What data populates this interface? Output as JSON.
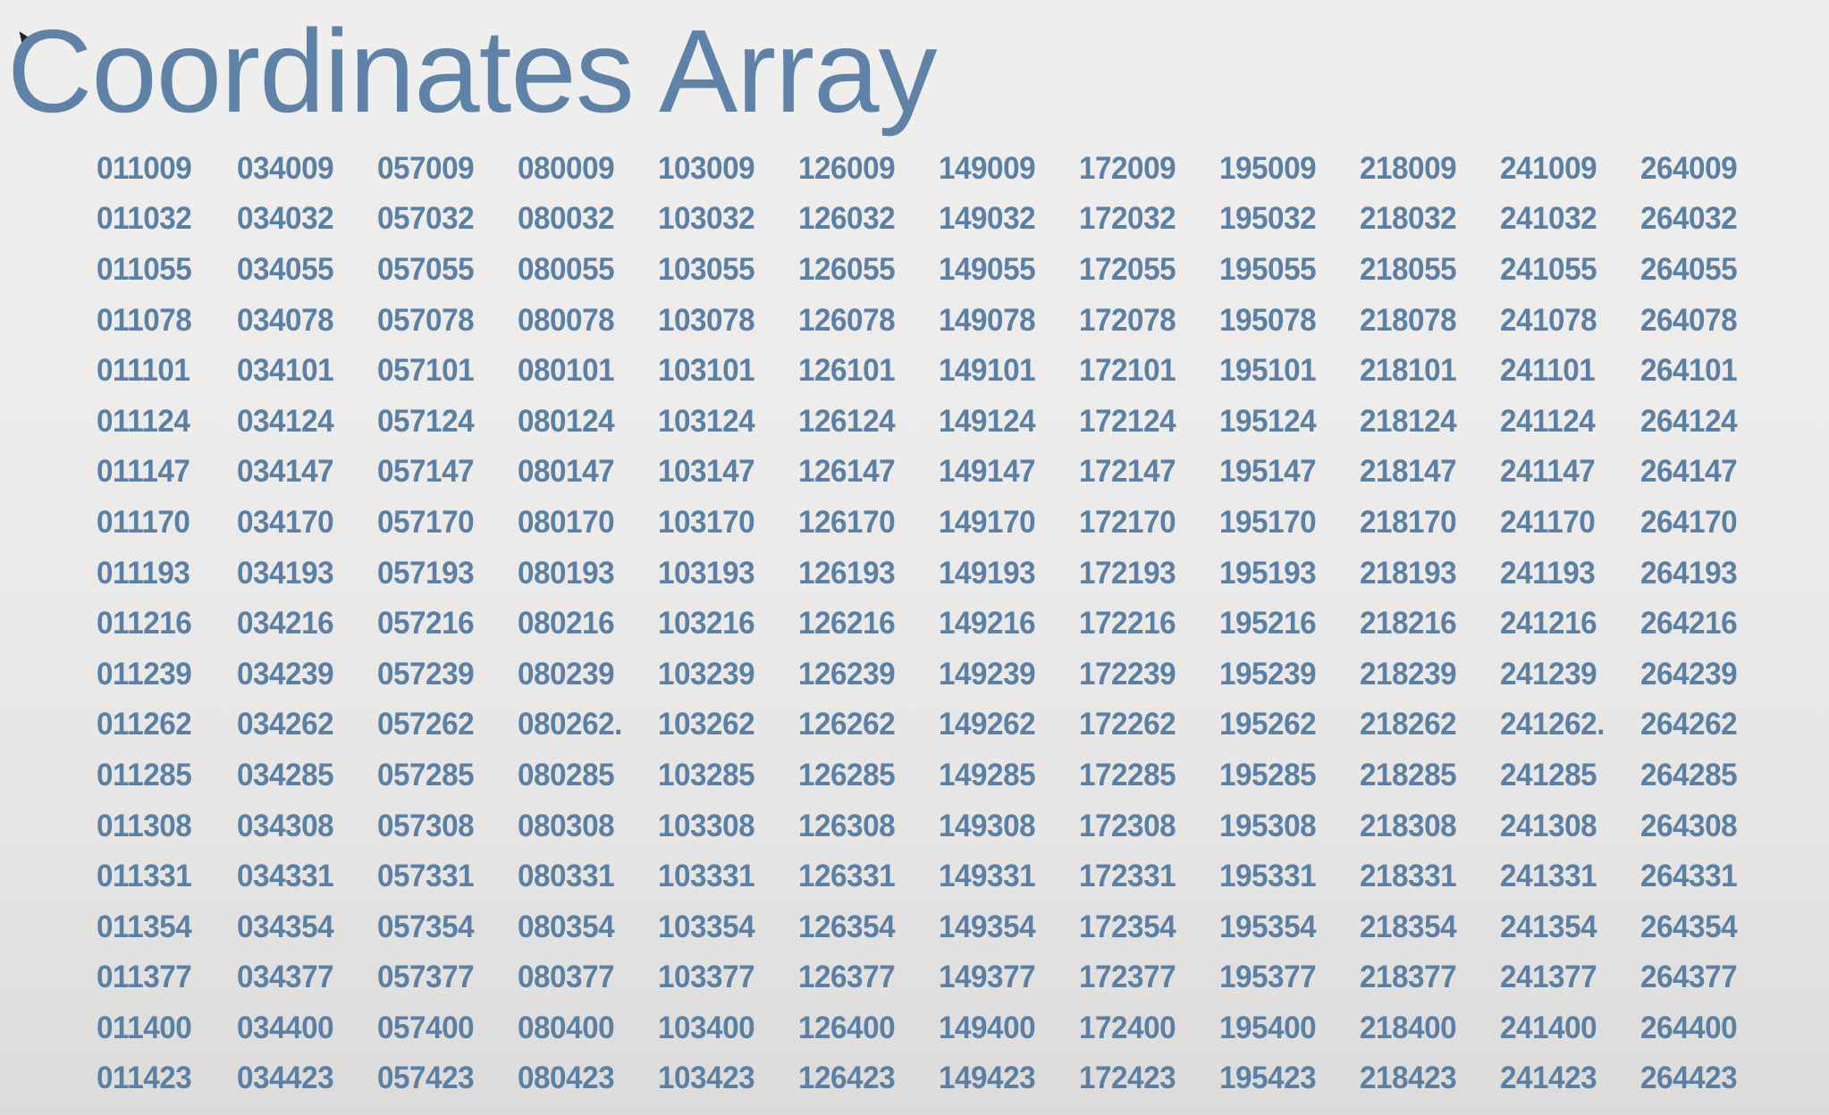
{
  "title": "Coordinates Array",
  "rows": [
    [
      "011009",
      "034009",
      "057009",
      "080009",
      "103009",
      "126009",
      "149009",
      "172009",
      "195009",
      "218009",
      "241009",
      "264009"
    ],
    [
      "011032",
      "034032",
      "057032",
      "080032",
      "103032",
      "126032",
      "149032",
      "172032",
      "195032",
      "218032",
      "241032",
      "264032"
    ],
    [
      "011055",
      "034055",
      "057055",
      "080055",
      "103055",
      "126055",
      "149055",
      "172055",
      "195055",
      "218055",
      "241055",
      "264055"
    ],
    [
      "011078",
      "034078",
      "057078",
      "080078",
      "103078",
      "126078",
      "149078",
      "172078",
      "195078",
      "218078",
      "241078",
      "264078"
    ],
    [
      "011101",
      "034101",
      "057101",
      "080101",
      "103101",
      "126101",
      "149101",
      "172101",
      "195101",
      "218101",
      "241101",
      "264101"
    ],
    [
      "011124",
      "034124",
      "057124",
      "080124",
      "103124",
      "126124",
      "149124",
      "172124",
      "195124",
      "218124",
      "241124",
      "264124"
    ],
    [
      "011147",
      "034147",
      "057147",
      "080147",
      "103147",
      "126147",
      "149147",
      "172147",
      "195147",
      "218147",
      "241147",
      "264147"
    ],
    [
      "011170",
      "034170",
      "057170",
      "080170",
      "103170",
      "126170",
      "149170",
      "172170",
      "195170",
      "218170",
      "241170",
      "264170"
    ],
    [
      "011193",
      "034193",
      "057193",
      "080193",
      "103193",
      "126193",
      "149193",
      "172193",
      "195193",
      "218193",
      "241193",
      "264193"
    ],
    [
      "011216",
      "034216",
      "057216",
      "080216",
      "103216",
      "126216",
      "149216",
      "172216",
      "195216",
      "218216",
      "241216",
      "264216"
    ],
    [
      "011239",
      "034239",
      "057239",
      "080239",
      "103239",
      "126239",
      "149239",
      "172239",
      "195239",
      "218239",
      "241239",
      "264239"
    ],
    [
      "011262",
      "034262",
      "057262",
      "080262.",
      "103262",
      "126262",
      "149262",
      "172262",
      "195262",
      "218262",
      "241262.",
      "264262"
    ],
    [
      "011285",
      "034285",
      "057285",
      "080285",
      "103285",
      "126285",
      "149285",
      "172285",
      "195285",
      "218285",
      "241285",
      "264285"
    ],
    [
      "011308",
      "034308",
      "057308",
      "080308",
      "103308",
      "126308",
      "149308",
      "172308",
      "195308",
      "218308",
      "241308",
      "264308"
    ],
    [
      "011331",
      "034331",
      "057331",
      "080331",
      "103331",
      "126331",
      "149331",
      "172331",
      "195331",
      "218331",
      "241331",
      "264331"
    ],
    [
      "011354",
      "034354",
      "057354",
      "080354",
      "103354",
      "126354",
      "149354",
      "172354",
      "195354",
      "218354",
      "241354",
      "264354"
    ],
    [
      "011377",
      "034377",
      "057377",
      "080377",
      "103377",
      "126377",
      "149377",
      "172377",
      "195377",
      "218377",
      "241377",
      "264377"
    ],
    [
      "011400",
      "034400",
      "057400",
      "080400",
      "103400",
      "126400",
      "149400",
      "172400",
      "195400",
      "218400",
      "241400",
      "264400"
    ],
    [
      "011423",
      "034423",
      "057423",
      "080423",
      "103423",
      "126423",
      "149423",
      "172423",
      "195423",
      "218423",
      "241423",
      "264423"
    ]
  ],
  "colors": {
    "text": "#5b80a5",
    "background": "#ecebe9"
  }
}
